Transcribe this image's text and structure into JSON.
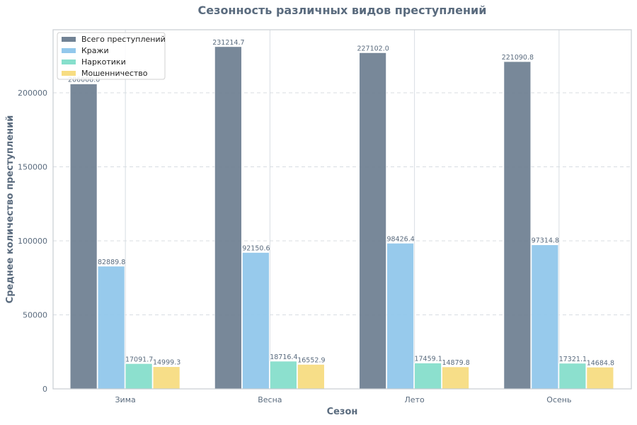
{
  "chart_data": {
    "type": "bar",
    "title": "Сезонность различных видов преступлений",
    "xlabel": "Сезон",
    "ylabel": "Среднее количество преступлений",
    "categories": [
      "Зима",
      "Весна",
      "Лето",
      "Осень"
    ],
    "series": [
      {
        "name": "Всего преступлений",
        "color": "#718294",
        "values": [
          206008.0,
          231214.7,
          227102.0,
          221090.8
        ]
      },
      {
        "name": "Кражи",
        "color": "#92c8ec",
        "values": [
          82889.8,
          92150.6,
          98426.4,
          97314.8
        ]
      },
      {
        "name": "Наркотики",
        "color": "#86dfcc",
        "values": [
          17091.7,
          18716.4,
          17459.1,
          17321.1
        ]
      },
      {
        "name": "Мошенничество",
        "color": "#f7dd82",
        "values": [
          14999.3,
          16552.9,
          14879.8,
          14684.8
        ]
      }
    ],
    "yticks": [
      0,
      50000,
      100000,
      150000,
      200000
    ],
    "ylim": [
      0,
      242600
    ],
    "grid": true,
    "legend": "top-left"
  }
}
